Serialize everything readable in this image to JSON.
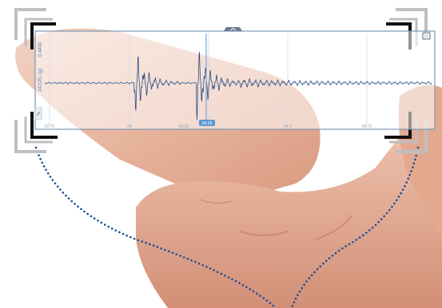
{
  "chart_data": {
    "type": "line",
    "title": "",
    "xlabel": "",
    "ylabel": "ACCEL (g)",
    "y_top_tick": "0.4400",
    "x_tick_labels": [
      "02.75",
      "04",
      "04.25",
      "04.5",
      "04.75"
    ],
    "cursor_label": "04.25",
    "grid": true,
    "series": [
      {
        "values": []
      }
    ]
  },
  "colors": {
    "waveform": "#2c4f86",
    "accent": "#5a9ad6",
    "frame": "#7f98b3",
    "dots": "#1f4f9a",
    "brackets_dark": "#111111",
    "brackets_light": "#bfbfbf"
  },
  "icons": {
    "collapse": "chevron-up-icon",
    "expand": "expand-icon",
    "cursor": "cursor-marker-icon"
  }
}
